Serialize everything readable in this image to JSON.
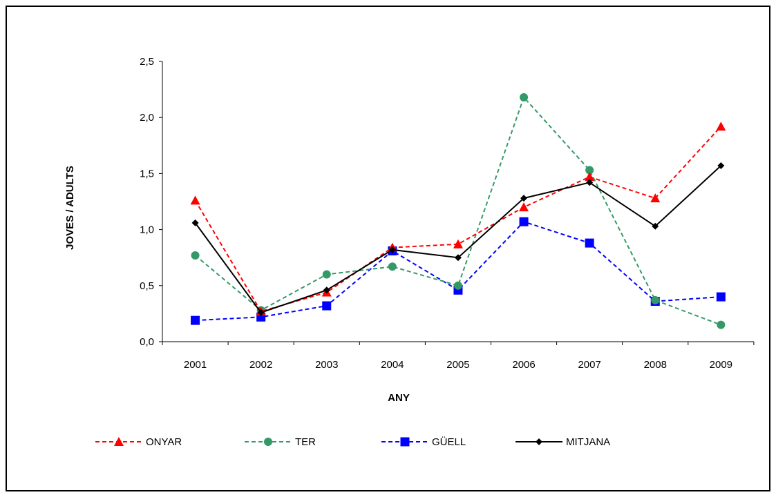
{
  "chart_data": {
    "type": "line",
    "title": "",
    "xlabel": "ANY",
    "ylabel": "JOVES / ADULTS",
    "categories": [
      "2001",
      "2002",
      "2003",
      "2004",
      "2005",
      "2006",
      "2007",
      "2008",
      "2009"
    ],
    "ylim": [
      0,
      2.5
    ],
    "yticks": [
      "0,0",
      "0,5",
      "1,0",
      "1,5",
      "2,0",
      "2,5"
    ],
    "grid": false,
    "legend_position": "bottom",
    "series": [
      {
        "name": "ONYAR",
        "color": "#ff0000",
        "marker": "triangle",
        "dash": "dashed",
        "values": [
          1.26,
          0.27,
          0.44,
          0.84,
          0.87,
          1.2,
          1.47,
          1.28,
          1.92
        ]
      },
      {
        "name": "TER",
        "color": "#339966",
        "marker": "circle",
        "dash": "dashed",
        "values": [
          0.77,
          0.28,
          0.6,
          0.67,
          0.5,
          2.18,
          1.53,
          0.37,
          0.15
        ]
      },
      {
        "name": "GÜELL",
        "color": "#0000ff",
        "marker": "square",
        "dash": "dashed",
        "values": [
          0.19,
          0.22,
          0.32,
          0.81,
          0.46,
          1.07,
          0.88,
          0.36,
          0.4
        ]
      },
      {
        "name": "MITJANA",
        "color": "#000000",
        "marker": "diamond",
        "dash": "solid",
        "values": [
          1.06,
          0.26,
          0.46,
          0.82,
          0.75,
          1.28,
          1.42,
          1.03,
          1.57
        ]
      }
    ]
  }
}
